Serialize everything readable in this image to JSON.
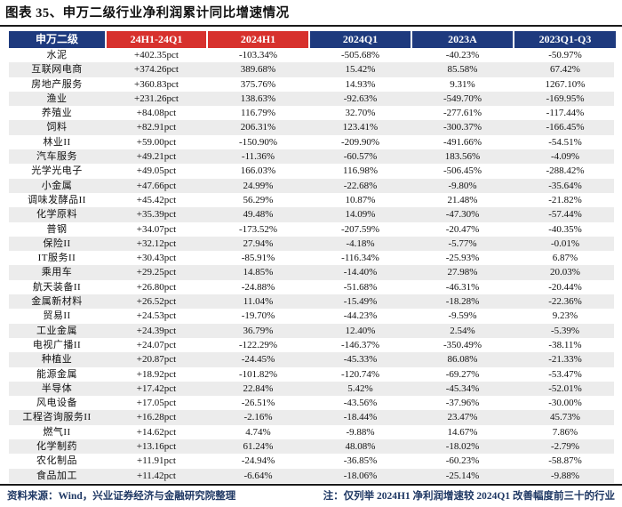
{
  "title": "图表 35、申万二级行业净利润累计同比增速情况",
  "colors": {
    "header_navy": "#1e3a7e",
    "header_red": "#d7312d",
    "row_stripe": "#ececec",
    "rule": "#1a1a1a",
    "footer_text": "#1f3864"
  },
  "table": {
    "columns": [
      "申万二级",
      "24H1-24Q1",
      "2024H1",
      "2024Q1",
      "2023A",
      "2023Q1-Q3"
    ],
    "header_styles": [
      "navy",
      "red",
      "red",
      "navy",
      "navy",
      "navy"
    ],
    "rows": [
      [
        "水泥",
        "+402.35pct",
        "-103.34%",
        "-505.68%",
        "-40.23%",
        "-50.97%"
      ],
      [
        "互联网电商",
        "+374.26pct",
        "389.68%",
        "15.42%",
        "85.58%",
        "67.42%"
      ],
      [
        "房地产服务",
        "+360.83pct",
        "375.76%",
        "14.93%",
        "9.31%",
        "1267.10%"
      ],
      [
        "渔业",
        "+231.26pct",
        "138.63%",
        "-92.63%",
        "-549.70%",
        "-169.95%"
      ],
      [
        "养殖业",
        "+84.08pct",
        "116.79%",
        "32.70%",
        "-277.61%",
        "-117.44%"
      ],
      [
        "饲料",
        "+82.91pct",
        "206.31%",
        "123.41%",
        "-300.37%",
        "-166.45%"
      ],
      [
        "林业II",
        "+59.00pct",
        "-150.90%",
        "-209.90%",
        "-491.66%",
        "-54.51%"
      ],
      [
        "汽车服务",
        "+49.21pct",
        "-11.36%",
        "-60.57%",
        "183.56%",
        "-4.09%"
      ],
      [
        "光学光电子",
        "+49.05pct",
        "166.03%",
        "116.98%",
        "-506.45%",
        "-288.42%"
      ],
      [
        "小金属",
        "+47.66pct",
        "24.99%",
        "-22.68%",
        "-9.80%",
        "-35.64%"
      ],
      [
        "调味发酵品II",
        "+45.42pct",
        "56.29%",
        "10.87%",
        "21.48%",
        "-21.82%"
      ],
      [
        "化学原料",
        "+35.39pct",
        "49.48%",
        "14.09%",
        "-47.30%",
        "-57.44%"
      ],
      [
        "普钢",
        "+34.07pct",
        "-173.52%",
        "-207.59%",
        "-20.47%",
        "-40.35%"
      ],
      [
        "保险II",
        "+32.12pct",
        "27.94%",
        "-4.18%",
        "-5.77%",
        "-0.01%"
      ],
      [
        "IT服务II",
        "+30.43pct",
        "-85.91%",
        "-116.34%",
        "-25.93%",
        "6.87%"
      ],
      [
        "乘用车",
        "+29.25pct",
        "14.85%",
        "-14.40%",
        "27.98%",
        "20.03%"
      ],
      [
        "航天装备II",
        "+26.80pct",
        "-24.88%",
        "-51.68%",
        "-46.31%",
        "-20.44%"
      ],
      [
        "金属新材料",
        "+26.52pct",
        "11.04%",
        "-15.49%",
        "-18.28%",
        "-22.36%"
      ],
      [
        "贸易II",
        "+24.53pct",
        "-19.70%",
        "-44.23%",
        "-9.59%",
        "9.23%"
      ],
      [
        "工业金属",
        "+24.39pct",
        "36.79%",
        "12.40%",
        "2.54%",
        "-5.39%"
      ],
      [
        "电视广播II",
        "+24.07pct",
        "-122.29%",
        "-146.37%",
        "-350.49%",
        "-38.11%"
      ],
      [
        "种植业",
        "+20.87pct",
        "-24.45%",
        "-45.33%",
        "86.08%",
        "-21.33%"
      ],
      [
        "能源金属",
        "+18.92pct",
        "-101.82%",
        "-120.74%",
        "-69.27%",
        "-53.47%"
      ],
      [
        "半导体",
        "+17.42pct",
        "22.84%",
        "5.42%",
        "-45.34%",
        "-52.01%"
      ],
      [
        "风电设备",
        "+17.05pct",
        "-26.51%",
        "-43.56%",
        "-37.96%",
        "-30.00%"
      ],
      [
        "工程咨询服务II",
        "+16.28pct",
        "-2.16%",
        "-18.44%",
        "23.47%",
        "45.73%"
      ],
      [
        "燃气II",
        "+14.62pct",
        "4.74%",
        "-9.88%",
        "14.67%",
        "7.86%"
      ],
      [
        "化学制药",
        "+13.16pct",
        "61.24%",
        "48.08%",
        "-18.02%",
        "-2.79%"
      ],
      [
        "农化制品",
        "+11.91pct",
        "-24.94%",
        "-36.85%",
        "-60.23%",
        "-58.87%"
      ],
      [
        "食品加工",
        "+11.42pct",
        "-6.64%",
        "-18.06%",
        "-25.14%",
        "-9.88%"
      ]
    ]
  },
  "footer": {
    "source": "资料来源：Wind，兴业证券经济与金融研究院整理",
    "note": "注：仅列举 2024H1 净利润增速较 2024Q1 改善幅度前三十的行业"
  }
}
